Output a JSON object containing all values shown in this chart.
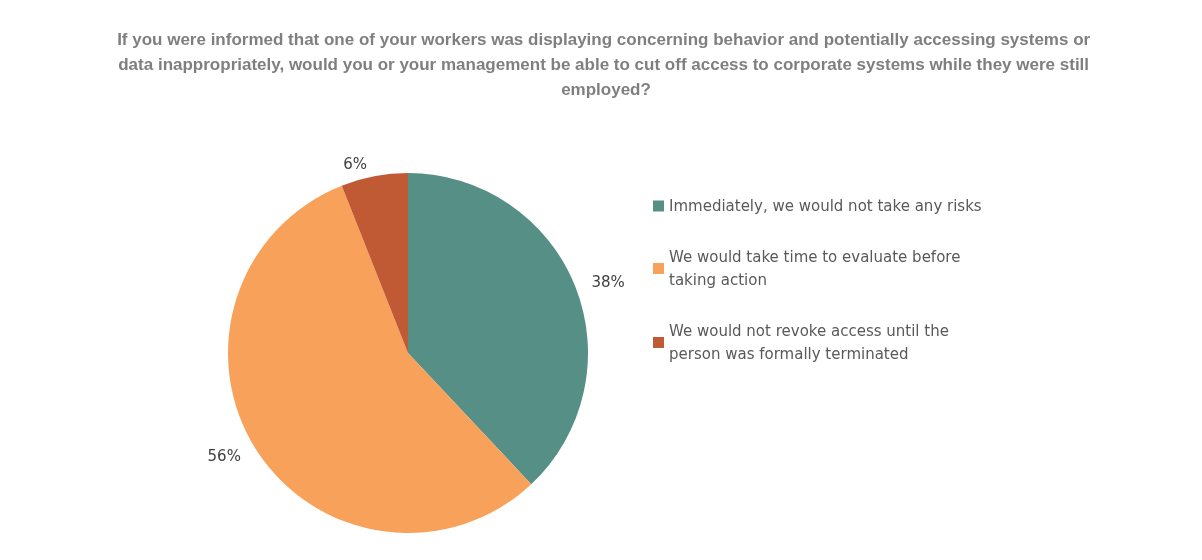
{
  "chart_data": {
    "type": "pie",
    "title": "If you were informed that one of your workers was displaying concerning behavior and potentially accessing systems or data inappropriately, would you or your management be able to cut off access to corporate systems while they were still employed?",
    "categories": [
      "Immediately, we would not take any risks",
      "We would take time to evaluate before taking action",
      "We would not revoke access until the person was formally terminated"
    ],
    "values": [
      38,
      56,
      6
    ],
    "value_labels": [
      "38%",
      "56%",
      "6%"
    ],
    "colors": [
      "#568f86",
      "#f8a15a",
      "#bf5a35"
    ],
    "legend": "right"
  }
}
